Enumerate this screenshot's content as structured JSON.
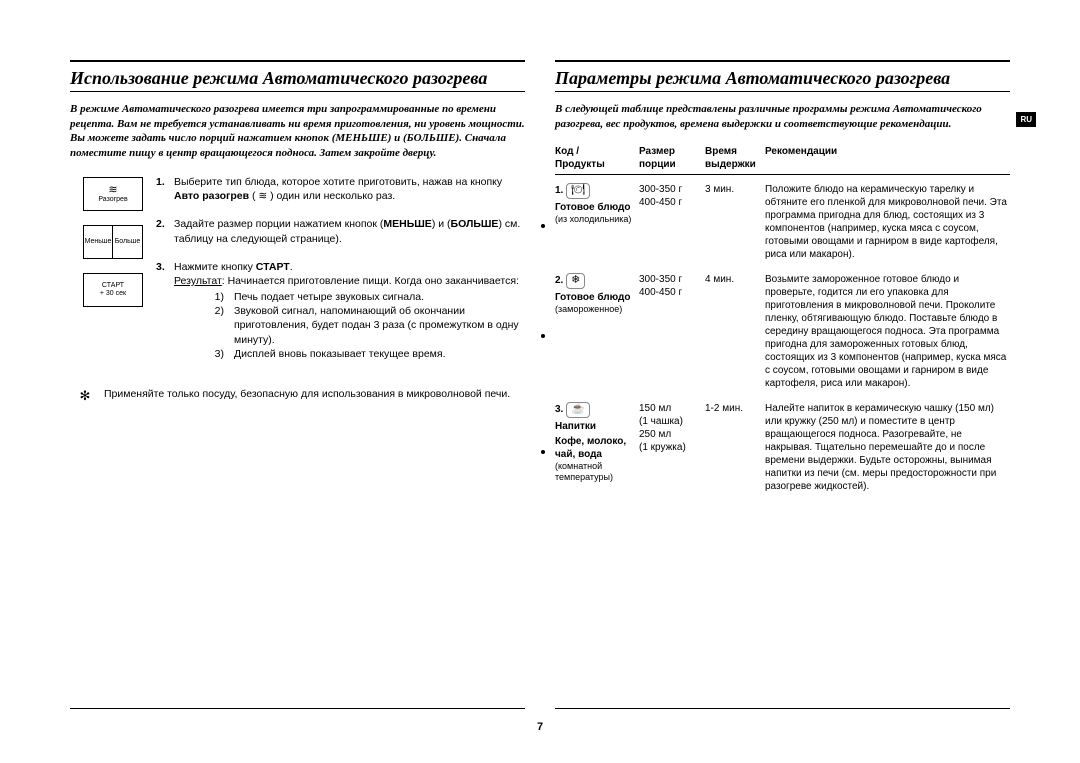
{
  "lang_tab": "RU",
  "page_number": "7",
  "left": {
    "title": "Использование режима Автоматического разогрева",
    "intro": "В режиме Автоматического разогрева имеется три запрограммированные по времени рецепта. Вам не требуется устанавливать ни время приготовления, ни уровень мощности. Вы можете задать число порций нажатием кнопок (МЕНЬШЕ) и (БОЛЬШЕ). Сначала поместите пищу в центр вращающегося подноса. Затем закройте дверцу.",
    "buttons": {
      "reheat": "Разогрев",
      "less": "Меньше",
      "more": "Больше",
      "start_l1": "СТАРТ",
      "start_l2": "+ 30 сек"
    },
    "steps": [
      {
        "num": "1.",
        "text_pre": "Выберите тип блюда, которое хотите приготовить, нажав на кнопку ",
        "bold": "Авто разогрев",
        "text_post": " ( ≋ ) один или несколько раз."
      },
      {
        "num": "2.",
        "text_pre": "Задайте размер порции нажатием кнопок (",
        "bold": "МЕНЬШЕ",
        "mid": ") и (",
        "bold2": "БОЛЬШЕ",
        "text_post": ") см. таблицу на следующей странице)."
      },
      {
        "num": "3.",
        "text_pre": "Нажмите кнопку ",
        "bold": "СТАРТ",
        "post": ".",
        "result_label": "Результат",
        "result_intro": ":   Начинается приготовление пищи. Когда оно заканчивается:",
        "subs": [
          "Печь подает четыре звуковых сигнала.",
          "Звуковой сигнал, напоминающий об окончании приготовления, будет подан 3 раза (с промежутком в одну минуту).",
          "Дисплей вновь показывает текущее время."
        ]
      }
    ],
    "note_symbol": "✻",
    "note": "Применяйте только посуду, безопасную для использования в микроволновой печи."
  },
  "right": {
    "title": "Параметры режима Автоматического разогрева",
    "intro": "В следующей таблице представлены различные программы режима Автоматического разогрева, вес продуктов, времена выдержки и соответствующие рекомендации.",
    "headers": {
      "c1a": "Код /",
      "c1b": "Продукты",
      "c2a": "Размер",
      "c2b": "порции",
      "c3a": "Время",
      "c3b": "выдержки",
      "c4": "Рекомендации"
    },
    "rows": [
      {
        "code": "1.",
        "icon": "🍽",
        "name": "Готовое блюдо",
        "note": "(из холодильника)",
        "size": "300-350 г\n400-450 г",
        "time": "3 мин.",
        "rec": "Положите блюдо на керамическую тарелку и обтяните его пленкой для микроволновой печи. Эта программа пригодна для блюд, состоящих из 3 компонентов (например, куска мяса с соусом, готовыми овощами и гарниром в виде картофеля, риса или макарон)."
      },
      {
        "code": "2.",
        "icon": "❄",
        "name": "Готовое блюдо",
        "note": "(замороженное)",
        "size": "300-350 г\n400-450 г",
        "time": "4 мин.",
        "rec": "Возьмите замороженное готовое блюдо и проверьте, годится ли его упаковка для приготовления в микроволновой печи. Проколите пленку, обтягивающую блюдо. Поставьте блюдо в середину вращающегося подноса. Эта программа пригодна для замороженных готовых блюд, состоящих из 3 компонентов (например, куска мяса с соусом, готовыми овощами и гарниром в виде картофеля, риса или макарон)."
      },
      {
        "code": "3.",
        "icon": "☕",
        "name": "Напитки",
        "name2": "Кофе, молоко, чай, вода",
        "note": "(комнатной температуры)",
        "size": "150 мл\n(1 чашка)\n250 мл\n(1 кружка)",
        "time": "1-2 мин.",
        "rec": "Налейте напиток в керамическую чашку (150 мл) или кружку (250 мл) и поместите в центр вращающегося подноса. Разогревайте, не накрывая. Тщательно перемешайте до и после времени выдержки. Будьте осторожны, вынимая напитки из печи (см. меры предосторожности при разогреве жидкостей)."
      }
    ]
  }
}
